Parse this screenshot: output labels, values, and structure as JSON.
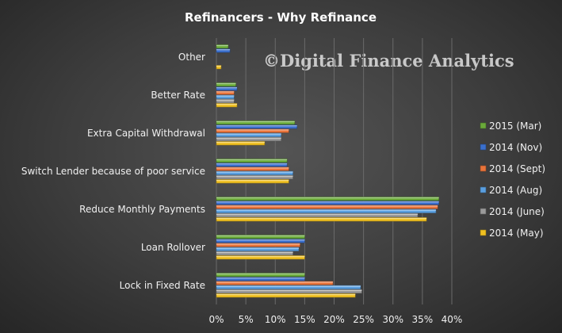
{
  "chart_data": {
    "type": "bar",
    "orientation": "horizontal",
    "title": "Refinancers  - Why Refinance",
    "watermark": "©Digital Finance Analytics",
    "categories": [
      "Other",
      "Better Rate",
      "Extra Capital Withdrawal",
      "Switch Lender because of poor service",
      "Reduce Monthly Payments",
      "Loan Rollover",
      "Lock in Fixed Rate"
    ],
    "series": [
      {
        "name": "2015 (Mar)",
        "color": "#6aaa3a",
        "values": [
          2.0,
          3.3,
          13.3,
          12.0,
          37.8,
          15.0,
          15.0
        ]
      },
      {
        "name": "2014 (Nov)",
        "color": "#3a6fcc",
        "values": [
          2.3,
          3.5,
          13.7,
          12.0,
          37.8,
          15.0,
          15.0
        ]
      },
      {
        "name": "2014 (Sept)",
        "color": "#e8733a",
        "values": [
          0.0,
          3.0,
          12.3,
          12.3,
          37.6,
          14.2,
          19.8
        ]
      },
      {
        "name": "2014 (Aug)",
        "color": "#5a9fe0",
        "values": [
          0.0,
          3.0,
          11.0,
          13.0,
          37.3,
          14.0,
          24.5
        ]
      },
      {
        "name": "2014 (June)",
        "color": "#9a9a9a",
        "values": [
          0.0,
          3.0,
          11.0,
          13.0,
          34.2,
          13.0,
          24.7
        ]
      },
      {
        "name": "2014 (May)",
        "color": "#f0c020",
        "values": [
          0.8,
          3.5,
          8.2,
          12.3,
          35.7,
          15.0,
          23.6
        ]
      }
    ],
    "xlim": [
      0,
      40
    ],
    "x_ticks": [
      "0%",
      "5%",
      "10%",
      "15%",
      "20%",
      "25%",
      "30%",
      "35%",
      "40%"
    ],
    "grid": true,
    "legend_position": "right"
  }
}
